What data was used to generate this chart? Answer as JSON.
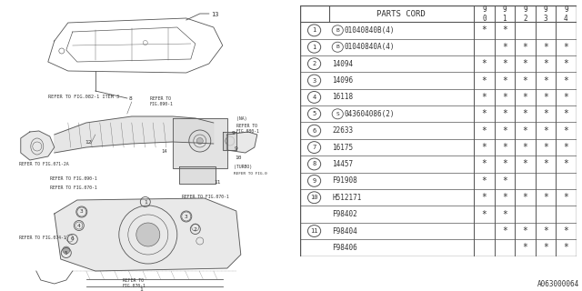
{
  "title": "PARTS CORD",
  "years": [
    "9\n0",
    "9\n1",
    "9\n2",
    "9\n3",
    "9\n4"
  ],
  "rows": [
    {
      "item": "1",
      "circle_item": true,
      "prefix": "B",
      "circle_prefix": true,
      "part": "01040840B(4)",
      "stars": [
        true,
        true,
        false,
        false,
        false
      ]
    },
    {
      "item": "1",
      "circle_item": true,
      "prefix": "B",
      "circle_prefix": true,
      "part": "01040840A(4)",
      "stars": [
        false,
        true,
        true,
        true,
        true
      ]
    },
    {
      "item": "2",
      "circle_item": true,
      "prefix": "",
      "circle_prefix": false,
      "part": "14094",
      "stars": [
        true,
        true,
        true,
        true,
        true
      ]
    },
    {
      "item": "3",
      "circle_item": true,
      "prefix": "",
      "circle_prefix": false,
      "part": "14096",
      "stars": [
        true,
        true,
        true,
        true,
        true
      ]
    },
    {
      "item": "4",
      "circle_item": true,
      "prefix": "",
      "circle_prefix": false,
      "part": "16118",
      "stars": [
        true,
        true,
        true,
        true,
        true
      ]
    },
    {
      "item": "5",
      "circle_item": true,
      "prefix": "S",
      "circle_prefix": true,
      "part": "043604086(2)",
      "stars": [
        true,
        true,
        true,
        true,
        true
      ]
    },
    {
      "item": "6",
      "circle_item": true,
      "prefix": "",
      "circle_prefix": false,
      "part": "22633",
      "stars": [
        true,
        true,
        true,
        true,
        true
      ]
    },
    {
      "item": "7",
      "circle_item": true,
      "prefix": "",
      "circle_prefix": false,
      "part": "16175",
      "stars": [
        true,
        true,
        true,
        true,
        true
      ]
    },
    {
      "item": "8",
      "circle_item": true,
      "prefix": "",
      "circle_prefix": false,
      "part": "14457",
      "stars": [
        true,
        true,
        true,
        true,
        true
      ]
    },
    {
      "item": "9",
      "circle_item": true,
      "prefix": "",
      "circle_prefix": false,
      "part": "F91908",
      "stars": [
        true,
        true,
        false,
        false,
        false
      ]
    },
    {
      "item": "10",
      "circle_item": true,
      "prefix": "",
      "circle_prefix": false,
      "part": "H512171",
      "stars": [
        true,
        true,
        true,
        true,
        true
      ]
    },
    {
      "item": "",
      "circle_item": false,
      "prefix": "",
      "circle_prefix": false,
      "part": "F98402",
      "stars": [
        true,
        true,
        false,
        false,
        false
      ]
    },
    {
      "item": "11",
      "circle_item": true,
      "prefix": "",
      "circle_prefix": false,
      "part": "F98404",
      "stars": [
        false,
        true,
        true,
        true,
        true
      ]
    },
    {
      "item": "",
      "circle_item": false,
      "prefix": "",
      "circle_prefix": false,
      "part": "F98406",
      "stars": [
        false,
        false,
        true,
        true,
        true
      ]
    }
  ],
  "diagram_label": "A063000064",
  "lc": "#555555",
  "tc": "#333333"
}
